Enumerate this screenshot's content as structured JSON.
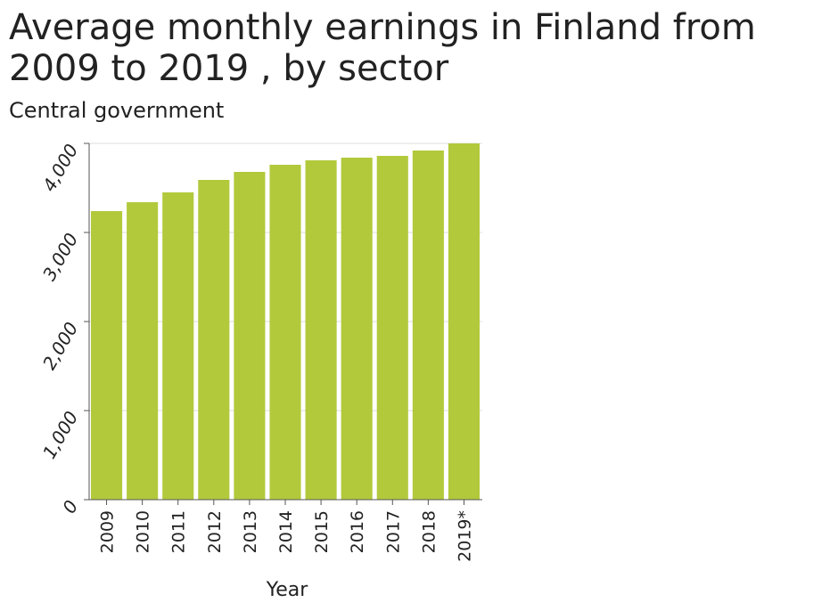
{
  "chart_data": {
    "type": "bar",
    "title": "Average monthly earnings in Finland from 2009 to 2019 , by sector",
    "subtitle": "Central government",
    "xlabel": "Year",
    "ylabel": "",
    "categories": [
      "2009",
      "2010",
      "2011",
      "2012",
      "2013",
      "2014",
      "2015",
      "2016",
      "2017",
      "2018",
      "2019*"
    ],
    "values": [
      3240,
      3340,
      3450,
      3590,
      3680,
      3760,
      3810,
      3840,
      3860,
      3920,
      4020
    ],
    "ylim": [
      0,
      4000
    ],
    "yticks": [
      0,
      1000,
      2000,
      3000,
      4000
    ],
    "ytick_labels": [
      "0",
      "1,000",
      "2,000",
      "3,000",
      "4,000"
    ],
    "bar_color": "#b2c93c",
    "grid": true,
    "legend": "none"
  }
}
